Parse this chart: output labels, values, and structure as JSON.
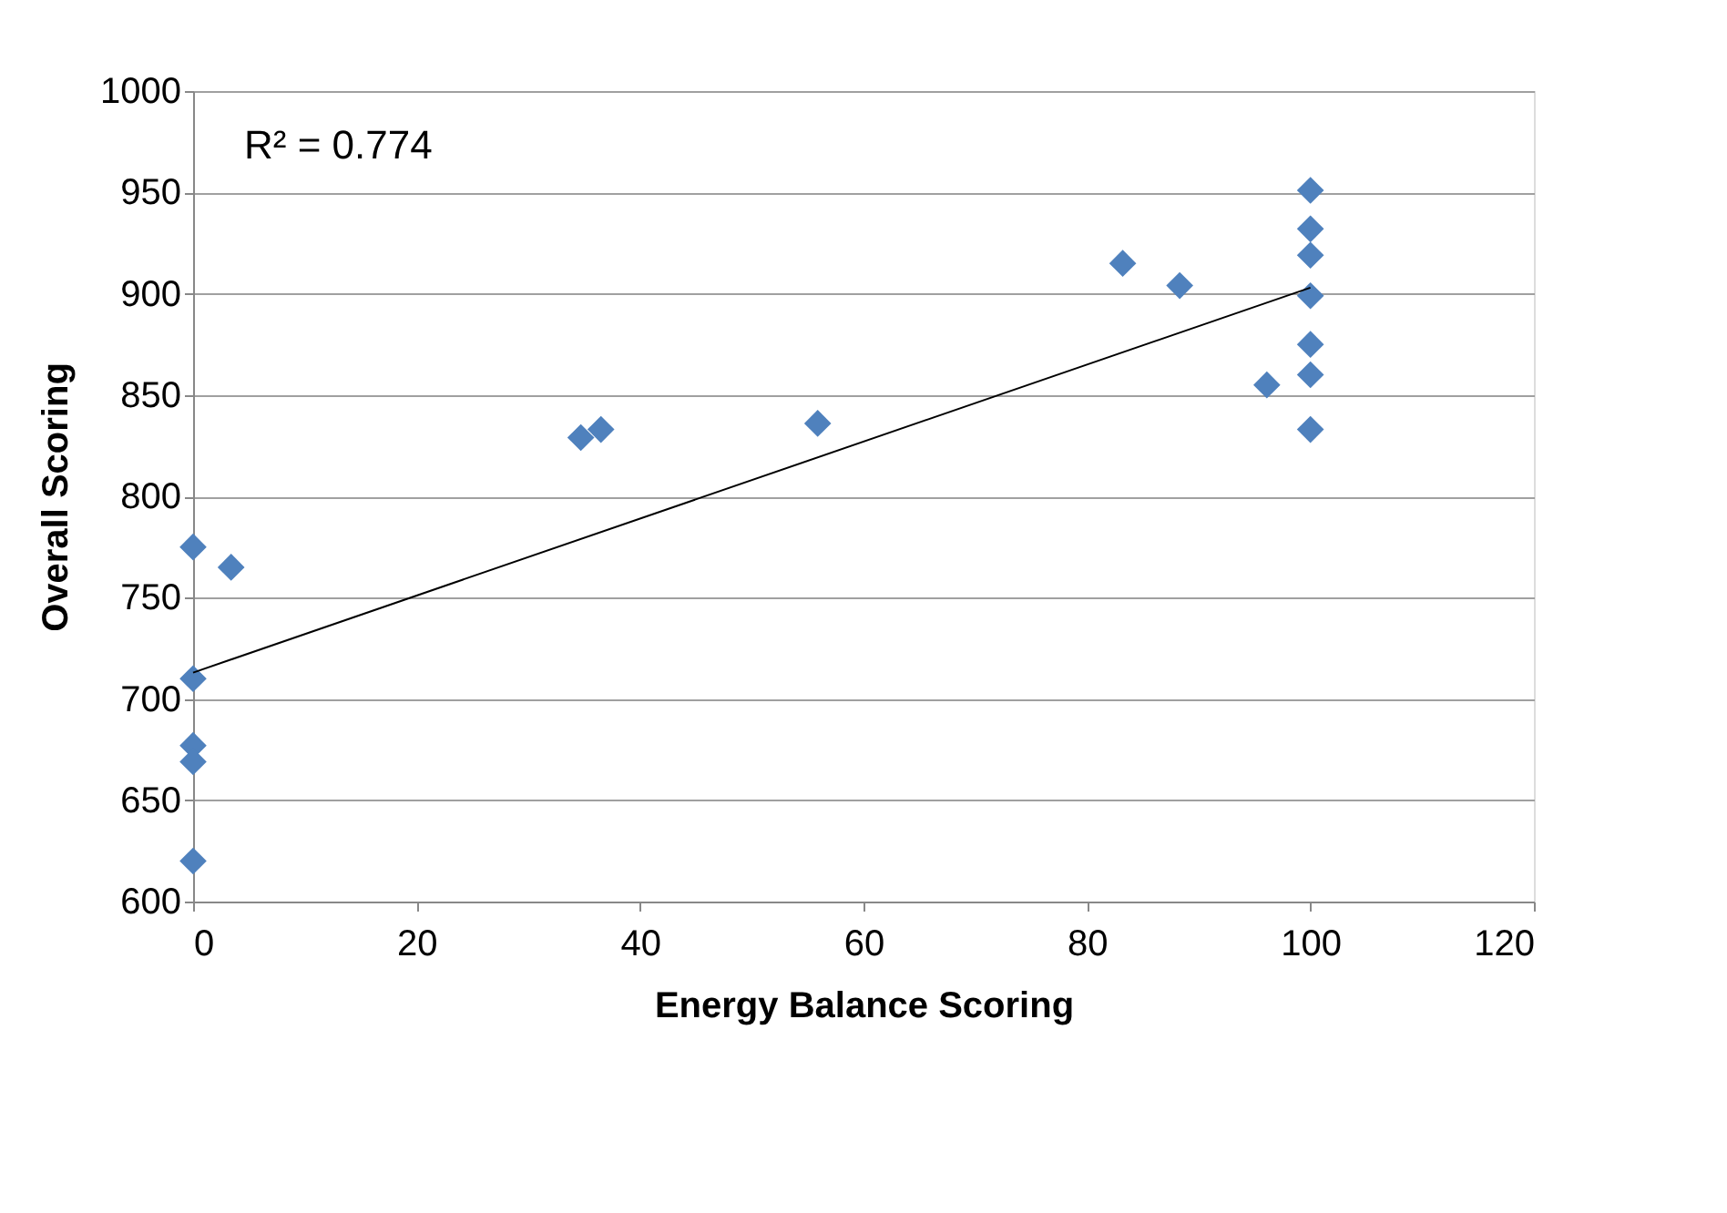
{
  "chart_data": {
    "type": "scatter",
    "xlabel": "Energy Balance Scoring",
    "ylabel": "Overall Scoring",
    "xlim": [
      0,
      120
    ],
    "xticks": [
      0,
      20,
      40,
      60,
      80,
      100,
      120
    ],
    "ylim": [
      600,
      1000
    ],
    "yticks": [
      600,
      650,
      700,
      750,
      800,
      850,
      900,
      950,
      1000
    ],
    "grid": "y",
    "marker": "diamond",
    "annotations": [
      "R² = 0.774"
    ],
    "series": [
      {
        "color": "#4f81bd",
        "x": [
          0,
          3.4,
          0,
          0,
          0,
          0,
          34.7,
          36.5,
          55.9,
          83.2,
          88.3,
          96.1,
          100,
          100,
          100,
          100,
          100,
          100,
          100
        ],
        "values": [
          775,
          765,
          710,
          677,
          669,
          620,
          829,
          833,
          836,
          915,
          904,
          855,
          951,
          932,
          919,
          899,
          875,
          860,
          833
        ]
      },
      {
        "type": "line",
        "marker": "none",
        "color": "#000000",
        "x": [
          0,
          100
        ],
        "values": [
          713,
          903
        ]
      }
    ]
  }
}
